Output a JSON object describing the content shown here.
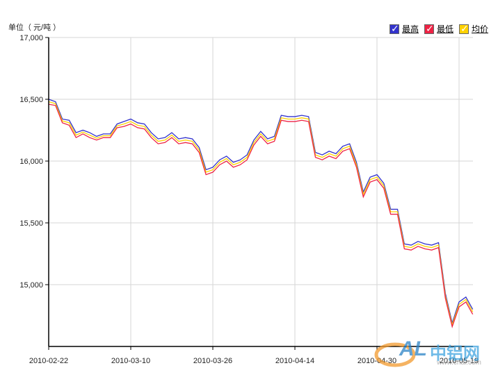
{
  "unit_label": "单位（ 元/吨 ）",
  "legend": [
    {
      "label": "最高",
      "color": "#3333cc"
    },
    {
      "label": "最低",
      "color": "#ee2244"
    },
    {
      "label": "均价",
      "color": "#ffd200"
    }
  ],
  "watermark": {
    "logo_text": "AL",
    "brand": "中铝网",
    "url": "www.cnal.com"
  },
  "chart_data": {
    "type": "line",
    "xlabel": "",
    "ylabel": "单位（ 元/吨 ）",
    "ylim": [
      14500,
      17000
    ],
    "yticks": [
      15000,
      15500,
      16000,
      16500,
      17000
    ],
    "ytick_labels": [
      "15,000",
      "15,500",
      "16,000",
      "16,500",
      "17,000"
    ],
    "x_tick_labels": [
      {
        "index": 0,
        "label": "2010-02-22"
      },
      {
        "index": 12,
        "label": "2010-03-10"
      },
      {
        "index": 24,
        "label": "2010-03-26"
      },
      {
        "index": 36,
        "label": "2010-04-14"
      },
      {
        "index": 48,
        "label": "2010-04-30"
      },
      {
        "index": 60,
        "label": "2010-05-19"
      }
    ],
    "grid": true,
    "legend_position": "top-right",
    "series": [
      {
        "name": "最高",
        "color": "#3333cc",
        "values": [
          16500,
          16480,
          16340,
          16330,
          16230,
          16250,
          16230,
          16200,
          16220,
          16220,
          16300,
          16320,
          16340,
          16310,
          16300,
          16230,
          16180,
          16190,
          16230,
          16180,
          16190,
          16180,
          16110,
          15930,
          15950,
          16010,
          16040,
          15990,
          16010,
          16050,
          16170,
          16240,
          16180,
          16200,
          16370,
          16360,
          16360,
          16370,
          16360,
          16070,
          16050,
          16080,
          16060,
          16120,
          16140,
          15990,
          15750,
          15870,
          15890,
          15820,
          15610,
          15610,
          15330,
          15320,
          15350,
          15330,
          15320,
          15340,
          14930,
          14690,
          14860,
          14900,
          14800
        ]
      },
      {
        "name": "均价",
        "color": "#ffd200",
        "values": [
          16480,
          16465,
          16325,
          16310,
          16210,
          16235,
          16210,
          16185,
          16205,
          16205,
          16285,
          16300,
          16320,
          16290,
          16280,
          16210,
          16160,
          16170,
          16210,
          16160,
          16170,
          16160,
          16090,
          15910,
          15930,
          15990,
          16020,
          15970,
          15990,
          16030,
          16150,
          16220,
          16160,
          16180,
          16350,
          16340,
          16340,
          16350,
          16340,
          16050,
          16030,
          16060,
          16040,
          16100,
          16120,
          15970,
          15730,
          15850,
          15870,
          15800,
          15590,
          15590,
          15310,
          15300,
          15330,
          15310,
          15300,
          15320,
          14910,
          14675,
          14840,
          14880,
          14780
        ]
      },
      {
        "name": "最低",
        "color": "#ee2244",
        "values": [
          16460,
          16450,
          16310,
          16290,
          16190,
          16220,
          16190,
          16170,
          16190,
          16190,
          16270,
          16280,
          16300,
          16270,
          16260,
          16190,
          16140,
          16150,
          16190,
          16140,
          16150,
          16140,
          16070,
          15890,
          15910,
          15970,
          16000,
          15950,
          15970,
          16010,
          16130,
          16200,
          16140,
          16160,
          16330,
          16320,
          16320,
          16330,
          16320,
          16030,
          16010,
          16040,
          16020,
          16080,
          16100,
          15950,
          15710,
          15830,
          15850,
          15780,
          15570,
          15570,
          15290,
          15280,
          15310,
          15290,
          15280,
          15300,
          14890,
          14660,
          14820,
          14860,
          14760
        ]
      }
    ]
  }
}
